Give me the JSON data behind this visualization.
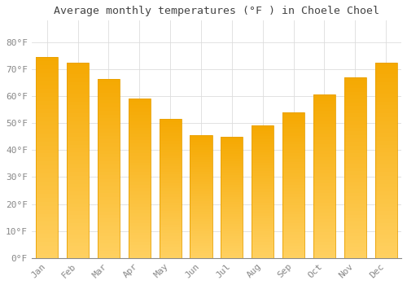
{
  "title": "Average monthly temperatures (°F ) in Choele Choel",
  "months": [
    "Jan",
    "Feb",
    "Mar",
    "Apr",
    "May",
    "Jun",
    "Jul",
    "Aug",
    "Sep",
    "Oct",
    "Nov",
    "Dec"
  ],
  "values": [
    74.5,
    72.5,
    66.5,
    59,
    51.5,
    45.5,
    45,
    49,
    54,
    60.5,
    67,
    72.5
  ],
  "bar_color_top": "#F5A800",
  "bar_color_bottom": "#FFD060",
  "bar_edge_color": "#E8A000",
  "background_color": "#FFFFFF",
  "grid_color": "#DDDDDD",
  "ylim": [
    0,
    88
  ],
  "yticks": [
    0,
    10,
    20,
    30,
    40,
    50,
    60,
    70,
    80
  ],
  "title_fontsize": 9.5,
  "tick_fontsize": 8,
  "tick_color": "#888888",
  "title_color": "#444444",
  "font_family": "monospace"
}
